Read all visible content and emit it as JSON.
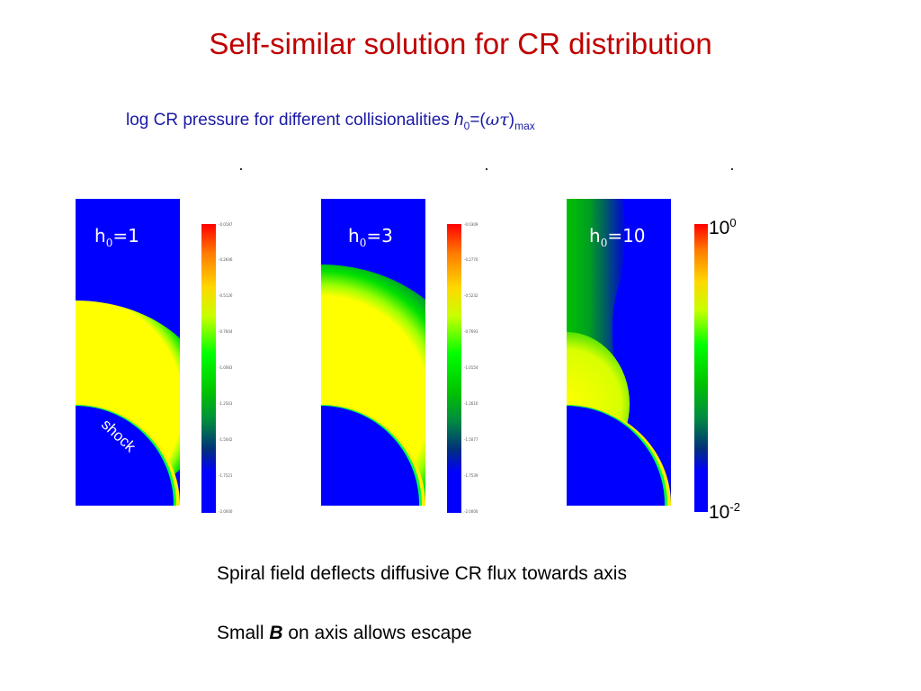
{
  "slide": {
    "title": "Self-similar solution for CR distribution",
    "subtitle": {
      "prefix": "log CR pressure for different collisionalities ",
      "h": "h",
      "h_sub": "0",
      "eq": "=(",
      "omega_tau": "ωτ",
      "close": ")",
      "max_sub": "max"
    }
  },
  "panels": [
    {
      "label_h": "h",
      "label_sub": "0",
      "label_val": "=1",
      "colorbar_ticks": [
        "-0.0187",
        "-0.2646",
        "-0.5126",
        "-0.7604",
        "-1.0083",
        "-1.2563",
        "-1.5042",
        "-1.7521",
        "-2.0000"
      ]
    },
    {
      "label_h": "h",
      "label_sub": "0",
      "label_val": "=3",
      "colorbar_ticks": [
        "-0.0309",
        "-0.2770",
        "-0.5232",
        "-0.7693",
        "-1.0154",
        "-1.2616",
        "-1.5077",
        "-1.7539",
        "-2.0000"
      ]
    },
    {
      "label_h": "h",
      "label_sub": "0",
      "label_val": "=10",
      "colorbar_ticks": []
    }
  ],
  "shock_label": "shock",
  "colorbar": {
    "top_base": "10",
    "top_exp": "0",
    "bottom_base": "10",
    "bottom_exp": "-2"
  },
  "notes": {
    "line1": "Spiral field deflects diffusive CR flux towards axis",
    "line2_pre": "Small ",
    "line2_bold": "B",
    "line2_post": " on axis allows escape"
  },
  "colors": {
    "title": "#c00000",
    "subtitle": "#1a1aa6",
    "field_low": "#0000ff",
    "field_high": "#ff0000"
  }
}
